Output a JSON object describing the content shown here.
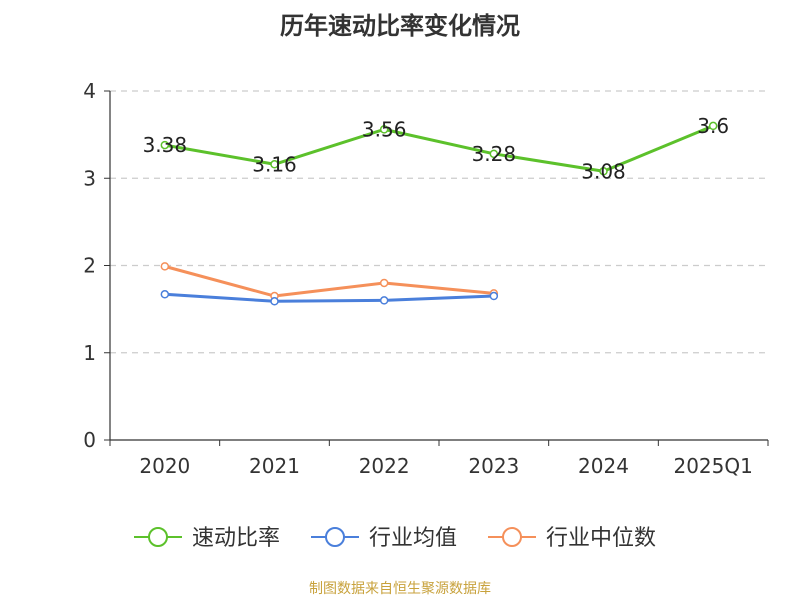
{
  "title": "历年速动比率变化情况",
  "source": "制图数据来自恒生聚源数据库",
  "chart_data": {
    "type": "line",
    "title": "历年速动比率变化情况",
    "categories": [
      "2020",
      "2021",
      "2022",
      "2023",
      "2024",
      "2025Q1"
    ],
    "ylim": [
      0,
      4
    ],
    "yticks": [
      0,
      1,
      2,
      3,
      4
    ],
    "grid": true,
    "legend_position": "bottom",
    "series": [
      {
        "name": "速动比率",
        "color": "#5cc12b",
        "values": [
          3.38,
          3.16,
          3.56,
          3.28,
          3.08,
          3.6
        ],
        "labels": [
          "3.38",
          "3.16",
          "3.56",
          "3.28",
          "3.08",
          "3.6"
        ]
      },
      {
        "name": "行业均值",
        "color": "#4a7fdb",
        "values": [
          1.67,
          1.59,
          1.6,
          1.65,
          null,
          null
        ]
      },
      {
        "name": "行业中位数",
        "color": "#f5905a",
        "values": [
          1.99,
          1.65,
          1.8,
          1.68,
          null,
          null
        ]
      }
    ]
  }
}
